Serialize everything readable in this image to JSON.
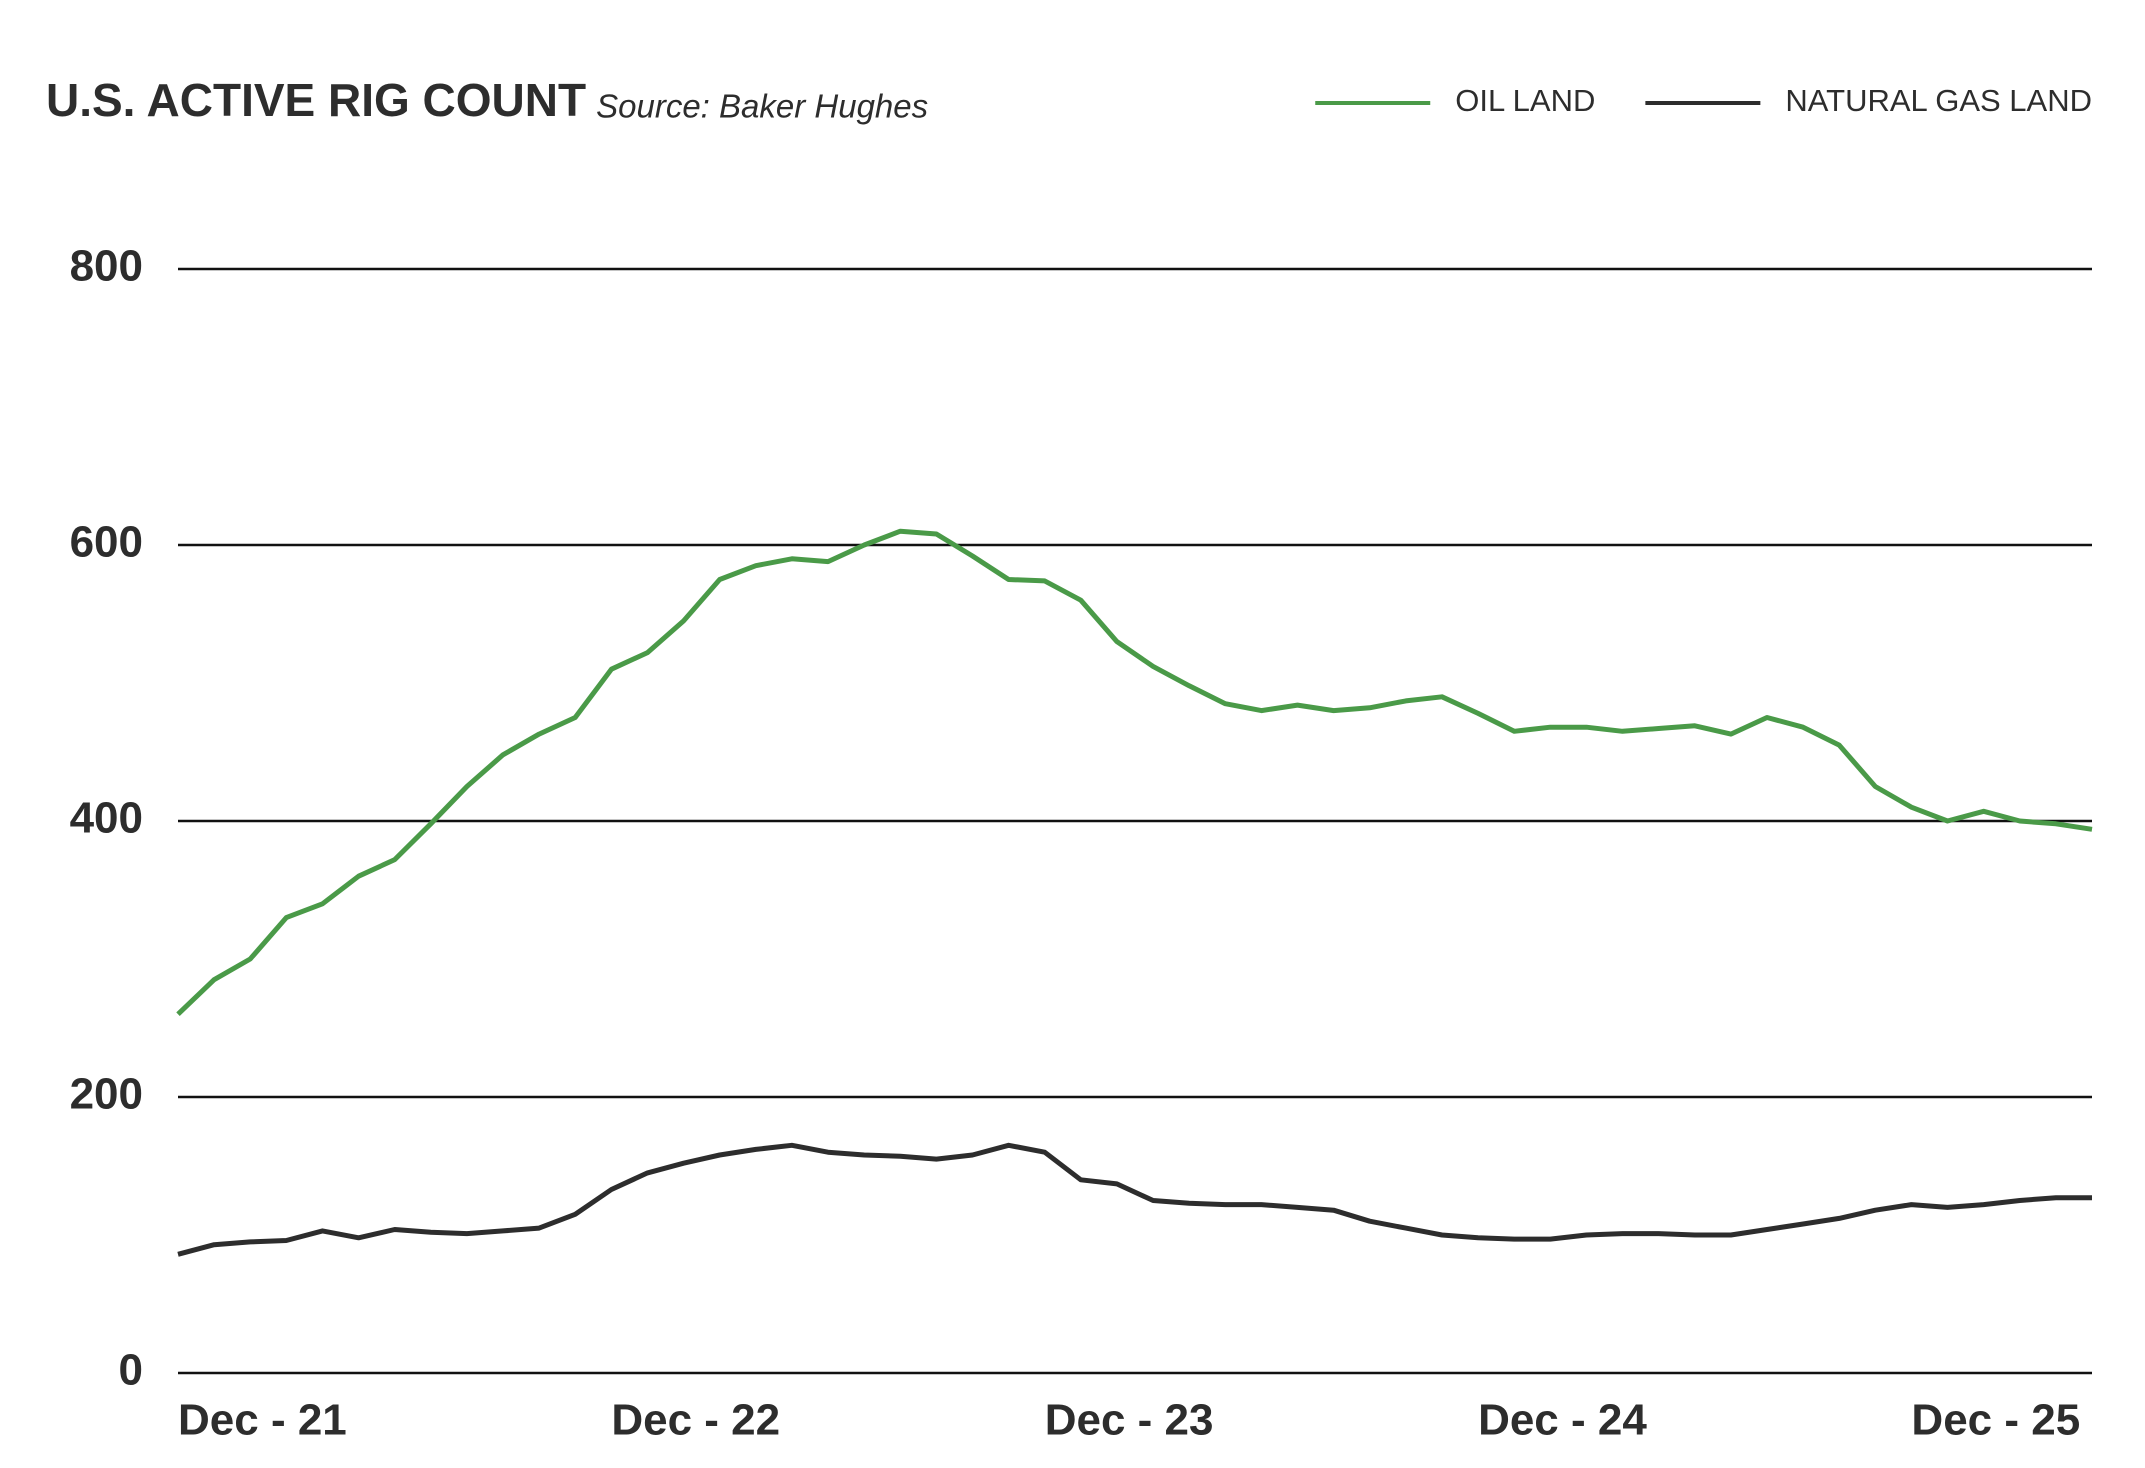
{
  "chart_data": {
    "type": "line",
    "title": "U.S. ACTIVE RIG COUNT",
    "subtitle": "Source: Baker Hughes",
    "categories": [
      "Dec - 21",
      null,
      null,
      null,
      null,
      null,
      null,
      null,
      null,
      null,
      null,
      null,
      "Dec - 22",
      null,
      null,
      null,
      null,
      null,
      null,
      null,
      null,
      null,
      null,
      null,
      "Dec - 23",
      null,
      null,
      null,
      null,
      null,
      null,
      null,
      null,
      null,
      null,
      null,
      "Dec - 24",
      null,
      null,
      null,
      null,
      null,
      null,
      null,
      null,
      null,
      null,
      null,
      "Dec - 25",
      null,
      null,
      null,
      null,
      null
    ],
    "series": [
      {
        "name": "OIL LAND",
        "color": "#4a9a48",
        "values": [
          260,
          285,
          300,
          330,
          340,
          360,
          372,
          398,
          425,
          448,
          463,
          475,
          510,
          522,
          545,
          575,
          585,
          590,
          588,
          600,
          610,
          608,
          592,
          575,
          574,
          560,
          530,
          512,
          498,
          485,
          480,
          484,
          480,
          482,
          487,
          490,
          478,
          465,
          468,
          468,
          465,
          467,
          469,
          463,
          475,
          468,
          455,
          425,
          410,
          400,
          407,
          400,
          398,
          394
        ]
      },
      {
        "name": "NATURAL GAS LAND",
        "color": "#2d2d2d",
        "values": [
          86,
          93,
          95,
          96,
          103,
          98,
          104,
          102,
          101,
          103,
          105,
          115,
          133,
          145,
          152,
          158,
          162,
          165,
          160,
          158,
          157,
          155,
          158,
          165,
          160,
          140,
          137,
          125,
          123,
          122,
          122,
          120,
          118,
          110,
          105,
          100,
          98,
          97,
          97,
          100,
          101,
          101,
          100,
          100,
          104,
          108,
          112,
          118,
          122,
          120,
          122,
          125,
          127,
          127
        ]
      }
    ],
    "ylim": [
      0,
      800
    ],
    "yticks": [
      0,
      200,
      400,
      600,
      800
    ],
    "grid": true,
    "legend": "top-right"
  }
}
